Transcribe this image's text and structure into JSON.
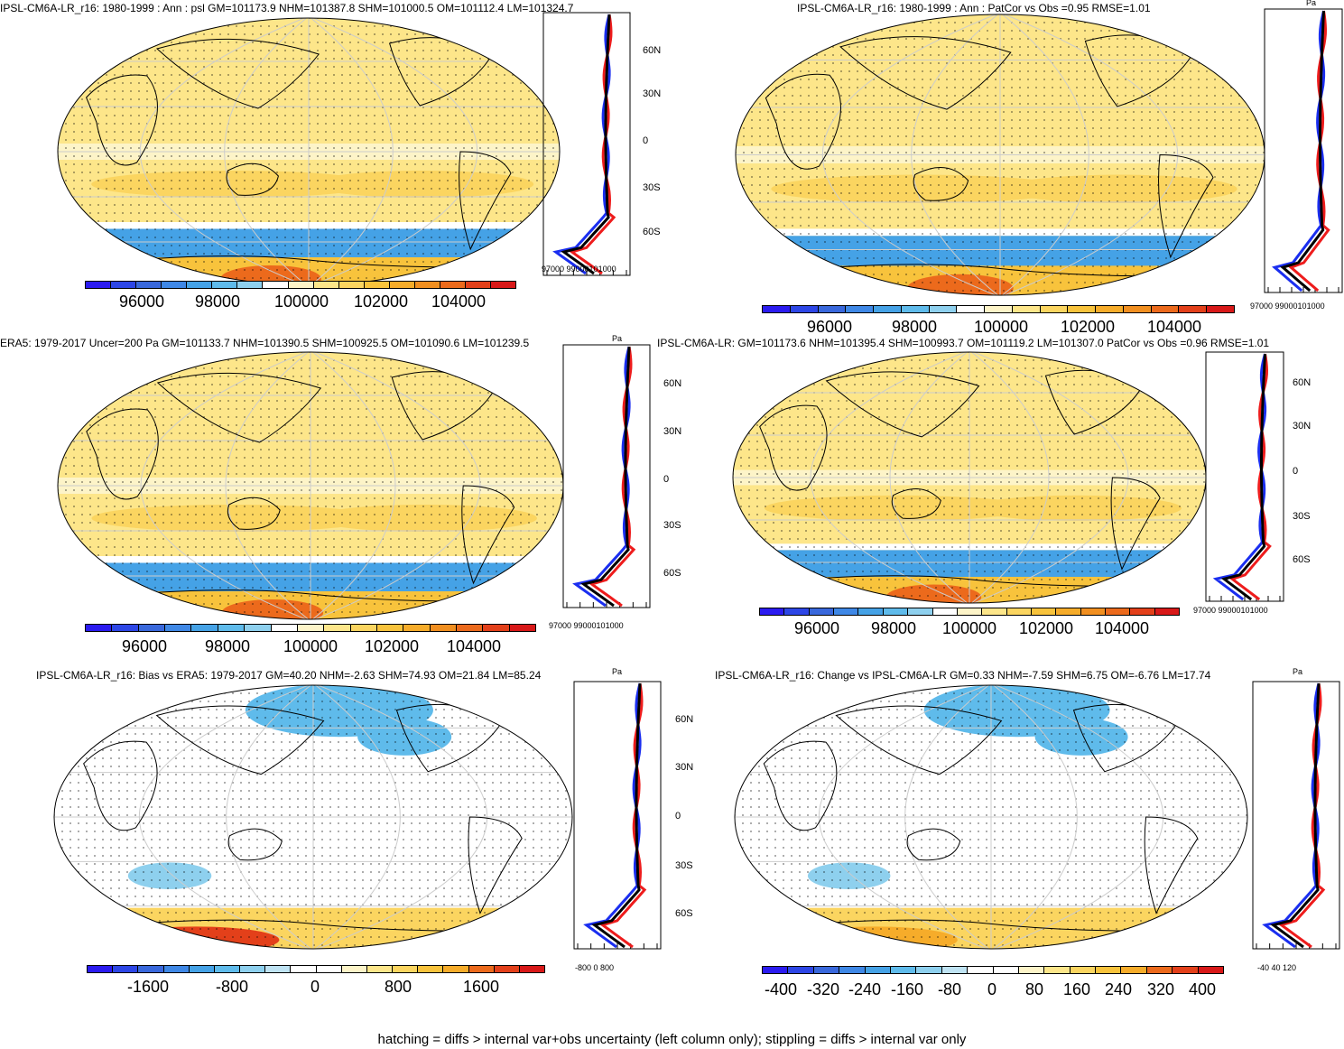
{
  "colors": {
    "abs_scale": [
      "#2b1bf0",
      "#2d46e6",
      "#3968dc",
      "#3f88e6",
      "#45a2e6",
      "#5fbbeb",
      "#8ed0ee",
      "#ffffff",
      "#fdf4c8",
      "#fde68a",
      "#fbd560",
      "#f8c33c",
      "#f6ac2a",
      "#f18f20",
      "#ec6a1c",
      "#e3401a",
      "#d81818"
    ],
    "diff_scale": [
      "#2b1bf0",
      "#2d46e6",
      "#3968dc",
      "#3f88e6",
      "#45a2e6",
      "#5fbbeb",
      "#8ed0ee",
      "#bfe3f3",
      "#ffffff",
      "#ffffff",
      "#fdf4c8",
      "#fde68a",
      "#fbd560",
      "#f8c33c",
      "#f6ac2a",
      "#ec6a1c",
      "#e3401a",
      "#d81818"
    ],
    "line_model": "#ee1c1c",
    "line_obs": "#1a2ef0",
    "line_mean": "#000000"
  },
  "panels": [
    {
      "id": "model-psl",
      "title": "IPSL-CM6A-LR_r16: 1980-1999 : Ann : psl GM=101173.9 NHM=101387.8 SHM=101000.5 OM=101112.4 LM=101324.7",
      "lat_labels": [
        "60N",
        "30N",
        "0",
        "30S",
        "60S"
      ],
      "zm_ticks": "97000 99000101000",
      "zm_unit": "",
      "cb_ticks": [
        "96000",
        "98000",
        "100000",
        "102000",
        "104000"
      ],
      "scale": "abs",
      "fill": "yellow"
    },
    {
      "id": "patcor",
      "title": "IPSL-CM6A-LR_r16: 1980-1999 : Ann : PatCor vs Obs =0.95 RMSE=1.01",
      "lat_labels": [],
      "zm_ticks": "97000 99000101000",
      "zm_unit": "Pa",
      "cb_ticks": [
        "96000",
        "98000",
        "100000",
        "102000",
        "104000"
      ],
      "scale": "abs",
      "fill": "yellow"
    },
    {
      "id": "era5",
      "title": "ERA5: 1979-2017 Uncer=200 Pa GM=101133.7 NHM=101390.5 SHM=100925.5 OM=101090.6 LM=101239.5",
      "lat_labels": [
        "60N",
        "30N",
        "0",
        "30S",
        "60S"
      ],
      "zm_ticks": "97000 99000101000",
      "zm_unit": "Pa",
      "cb_ticks": [
        "96000",
        "98000",
        "100000",
        "102000",
        "104000"
      ],
      "scale": "abs",
      "fill": "yellow"
    },
    {
      "id": "ipsl-mean",
      "title": "IPSL-CM6A-LR: GM=101173.6 NHM=101395.4 SHM=100993.7 OM=101119.2 LM=101307.0 PatCor vs Obs =0.96 RMSE=1.01",
      "lat_labels": [
        "60N",
        "30N",
        "0",
        "30S",
        "60S"
      ],
      "zm_ticks": "97000 99000101000",
      "zm_unit": "",
      "cb_ticks": [
        "96000",
        "98000",
        "100000",
        "102000",
        "104000"
      ],
      "scale": "abs",
      "fill": "yellow"
    },
    {
      "id": "bias",
      "title": "IPSL-CM6A-LR_r16: Bias vs ERA5: 1979-2017 GM=40.20 NHM=-2.63 SHM=74.93 OM=21.84 LM=85.24",
      "lat_labels": [
        "60N",
        "30N",
        "0",
        "30S",
        "60S"
      ],
      "zm_ticks": "-800    0    800",
      "zm_unit": "Pa",
      "cb_ticks": [
        "-1600",
        "-800",
        "0",
        "800",
        "1600"
      ],
      "scale": "diff",
      "fill": "white"
    },
    {
      "id": "change",
      "title": "IPSL-CM6A-LR_r16: Change vs IPSL-CM6A-LR GM=0.33 NHM=-7.59 SHM=6.75 OM=-6.76 LM=17.74",
      "lat_labels": [],
      "zm_ticks": "-40   40   120",
      "zm_unit": "Pa",
      "cb_ticks": [
        "-400",
        "-320",
        "-240",
        "-160",
        "-80",
        "0",
        "80",
        "160",
        "240",
        "320",
        "400"
      ],
      "scale": "diff",
      "fill": "white"
    }
  ],
  "footer": "hatching = diffs > internal var+obs uncertainty (left column only); stippling = diffs > internal var only"
}
